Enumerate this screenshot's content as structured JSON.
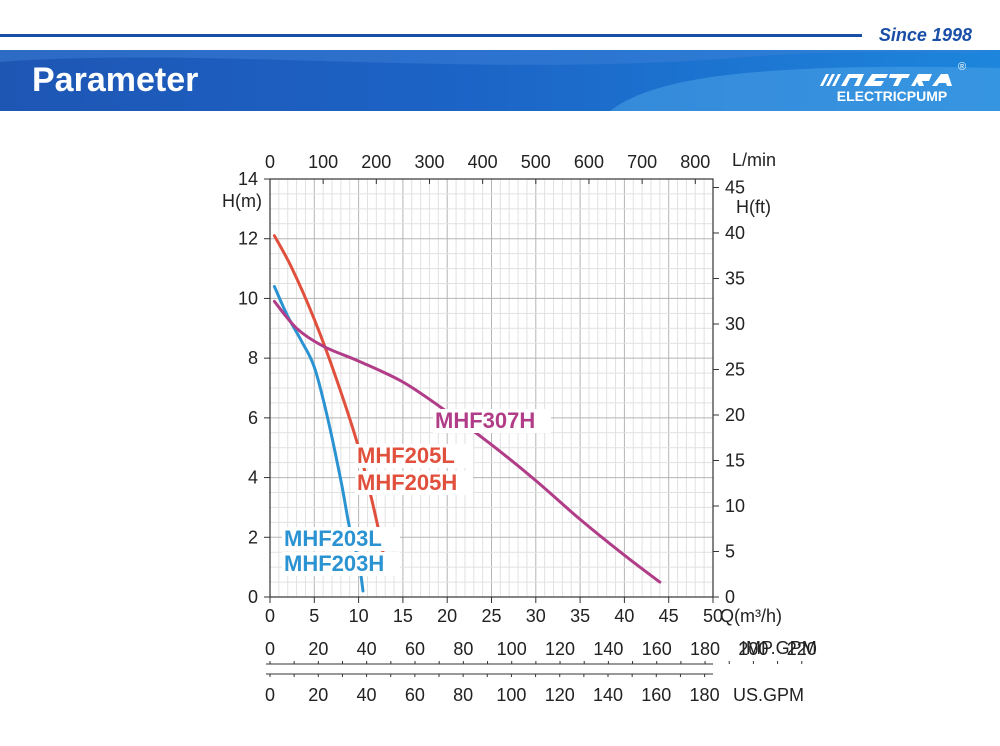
{
  "header": {
    "since": "Since 1998",
    "title": "Parameter",
    "brand_mark": "MASTRA",
    "brand_sub": "ELECTRICPUMP",
    "registered": "®",
    "colors": {
      "primary": "#1a4fa8",
      "banner_light": "#1d86dc"
    }
  },
  "chart_data": {
    "type": "line",
    "title": "",
    "xlabel": "Q(m³/h)",
    "ylabel": "H(m)",
    "xlim": [
      0,
      50
    ],
    "ylim": [
      0,
      14
    ],
    "grid": true,
    "x_ticks": [
      "0",
      "5",
      "10",
      "15",
      "20",
      "25",
      "30",
      "35",
      "40",
      "45",
      "50"
    ],
    "y_ticks": [
      "0",
      "2",
      "4",
      "6",
      "8",
      "10",
      "12",
      "14"
    ],
    "top_axis": {
      "label": "L/min",
      "ticks": [
        "0",
        "100",
        "200",
        "300",
        "400",
        "500",
        "600",
        "700",
        "800"
      ]
    },
    "right_axis": {
      "label": "H(ft)",
      "ticks": [
        "0",
        "5",
        "10",
        "15",
        "20",
        "25",
        "30",
        "35",
        "40",
        "45"
      ]
    },
    "imp_axis": {
      "label": "IMP.GPM",
      "ticks": [
        "0",
        "20",
        "40",
        "60",
        "80",
        "100",
        "120",
        "140",
        "160",
        "180",
        "200",
        "220"
      ]
    },
    "us_axis": {
      "label": "US.GPM",
      "ticks": [
        "0",
        "20",
        "40",
        "60",
        "80",
        "100",
        "120",
        "140",
        "160",
        "180"
      ]
    },
    "series": [
      {
        "name": "MHF203L / MHF203H",
        "labels": [
          "MHF203L",
          "MHF203H"
        ],
        "color": "#2b93d1",
        "x": [
          0.5,
          2,
          3.5,
          5,
          6.5,
          8,
          9,
          10,
          10.5
        ],
        "y": [
          10.4,
          9.4,
          8.6,
          7.7,
          6.0,
          3.9,
          2.3,
          1.2,
          0.2
        ]
      },
      {
        "name": "MHF205L / MHF205H",
        "labels": [
          "MHF205L",
          "MHF205H"
        ],
        "color": "#e0503c",
        "x": [
          0.5,
          2.5,
          5,
          7.5,
          10,
          12,
          13
        ],
        "y": [
          12.1,
          11.0,
          9.3,
          7.3,
          5.0,
          2.6,
          1.1
        ]
      },
      {
        "name": "MHF307H",
        "labels": [
          "MHF307H"
        ],
        "color": "#b13c87",
        "x": [
          0.5,
          3,
          6,
          10,
          15,
          20,
          25,
          30,
          35,
          40,
          44
        ],
        "y": [
          9.9,
          9.0,
          8.4,
          7.9,
          7.2,
          6.2,
          5.1,
          3.9,
          2.6,
          1.4,
          0.5
        ]
      }
    ]
  }
}
